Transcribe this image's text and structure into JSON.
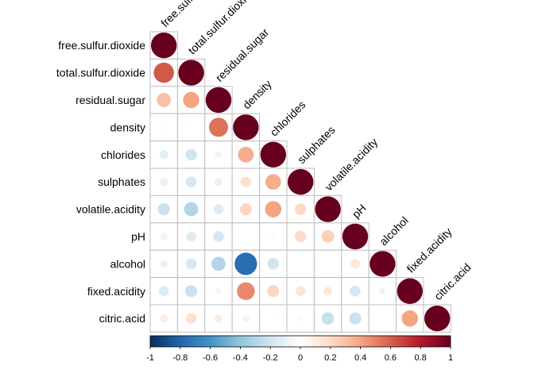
{
  "chart_data": {
    "type": "heatmap",
    "variables": [
      "free.sulfur.dioxide",
      "total.sulfur.dioxide",
      "residual.sugar",
      "density",
      "chlorides",
      "sulphates",
      "volatile.acidity",
      "pH",
      "alcohol",
      "fixed.acidity",
      "citric.acid"
    ],
    "shape": "circle",
    "triangle": "lower",
    "matrix": [
      [
        1
      ],
      [
        0.62,
        1
      ],
      [
        0.3,
        0.4,
        1
      ],
      [
        -0.02,
        -0.02,
        0.55,
        1
      ],
      [
        -0.12,
        -0.2,
        -0.08,
        0.37,
        1
      ],
      [
        -0.1,
        -0.18,
        -0.1,
        0.17,
        0.37,
        1
      ],
      [
        -0.22,
        -0.3,
        -0.15,
        0.22,
        0.4,
        0.2,
        1
      ],
      [
        -0.08,
        -0.15,
        -0.18,
        0.01,
        0.04,
        0.2,
        0.24,
        1
      ],
      [
        -0.09,
        -0.18,
        -0.3,
        -0.76,
        -0.2,
        0.0,
        -0.01,
        0.13,
        1
      ],
      [
        -0.15,
        -0.22,
        -0.06,
        0.48,
        0.22,
        0.15,
        0.12,
        -0.18,
        -0.07,
        1
      ],
      [
        0.1,
        0.17,
        0.1,
        0.08,
        0.02,
        0.04,
        -0.23,
        -0.22,
        0.0,
        0.4,
        1
      ]
    ],
    "colorbar": {
      "range": [
        -1,
        1
      ],
      "ticks": [
        "-1",
        "-0.8",
        "-0.6",
        "-0.4",
        "-0.2",
        "0",
        "0.2",
        "0.4",
        "0.6",
        "0.8",
        "1"
      ],
      "palette": [
        "#053061",
        "#2166AC",
        "#4393C3",
        "#92C5DE",
        "#D1E5F0",
        "#FFFFFF",
        "#FDDBC7",
        "#F4A582",
        "#D6604D",
        "#B2182B",
        "#67001F"
      ]
    },
    "grid_color": "#BEBEBE"
  }
}
